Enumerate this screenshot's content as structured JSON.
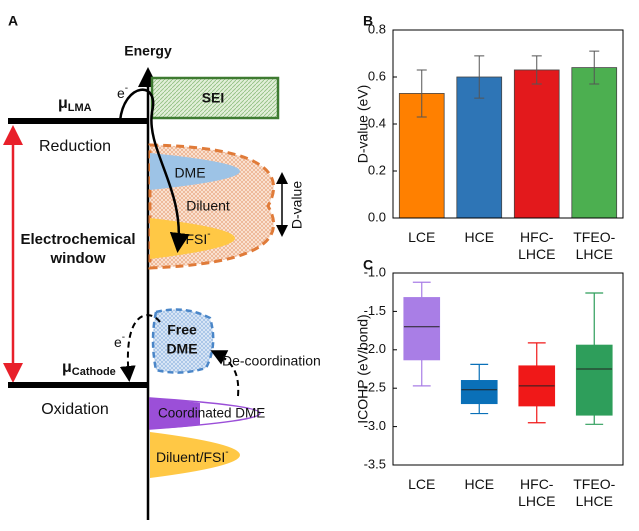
{
  "panel_a": {
    "label": "A",
    "energy": "Energy",
    "mu_lma": {
      "symbol": "μ",
      "sub": "LMA"
    },
    "electron_top": {
      "base": "e",
      "sup": "-"
    },
    "sei": "SEI",
    "reduction": "Reduction",
    "dme": "DME",
    "diluent": "Diluent",
    "fsi": {
      "base": "FSI",
      "sup": "-"
    },
    "d_value": "D-value",
    "window": [
      "Electrochemical",
      "window"
    ],
    "free_dme": [
      "Free",
      "DME"
    ],
    "decoordination": "De-coordination",
    "electron_bottom": {
      "base": "e",
      "sup": "-"
    },
    "mu_cathode": {
      "symbol": "μ",
      "sub": "Cathode"
    },
    "oxidation": "Oxidation",
    "coordinated_dme": "Coordinated DME",
    "diluent_fsi": {
      "base": "Diluent/FSI",
      "sup": "-"
    }
  },
  "chart_data": [
    {
      "type": "bar",
      "panel_label": "B",
      "ylabel": "D-value (eV)",
      "categories": [
        "LCE",
        "HCE",
        "HFC-\nLHCE",
        "TFEO-\nLHCE"
      ],
      "values": [
        0.53,
        0.6,
        0.63,
        0.64
      ],
      "errors": [
        0.1,
        0.09,
        0.06,
        0.07
      ],
      "colors": [
        "#ff8000",
        "#2e75b6",
        "#e3191c",
        "#4caf50"
      ],
      "ylim": [
        0,
        0.8
      ],
      "yticks": [
        {
          "value": 0,
          "label": "0.0"
        },
        0.2,
        0.4,
        0.6,
        0.8
      ]
    },
    {
      "type": "box",
      "panel_label": "C",
      "ylabel": "ICOHP (eV/bond)",
      "categories": [
        "LCE",
        "HCE",
        "HFC-\nLHCE",
        "TFEO-\nLHCE"
      ],
      "min": [
        -2.47,
        -2.83,
        -2.95,
        -2.97
      ],
      "q1": [
        -2.13,
        -2.7,
        -2.73,
        -2.85
      ],
      "median": [
        -1.7,
        -2.52,
        -2.47,
        -2.25
      ],
      "q3": [
        -1.32,
        -2.4,
        -2.21,
        -1.94
      ],
      "max": [
        -1.12,
        -2.19,
        -1.91,
        -1.26
      ],
      "colors": [
        "#a97ee6",
        "#0a70b8",
        "#f01818",
        "#2e9e5b"
      ],
      "ylim": [
        -3.5,
        -1.0
      ],
      "yticks": [
        -3.5,
        {
          "value": -3,
          "label": "-3.0"
        },
        -2.5,
        {
          "value": -2,
          "label": "-2.0"
        },
        -1.5,
        {
          "value": -1,
          "label": "-1.0"
        }
      ]
    }
  ]
}
